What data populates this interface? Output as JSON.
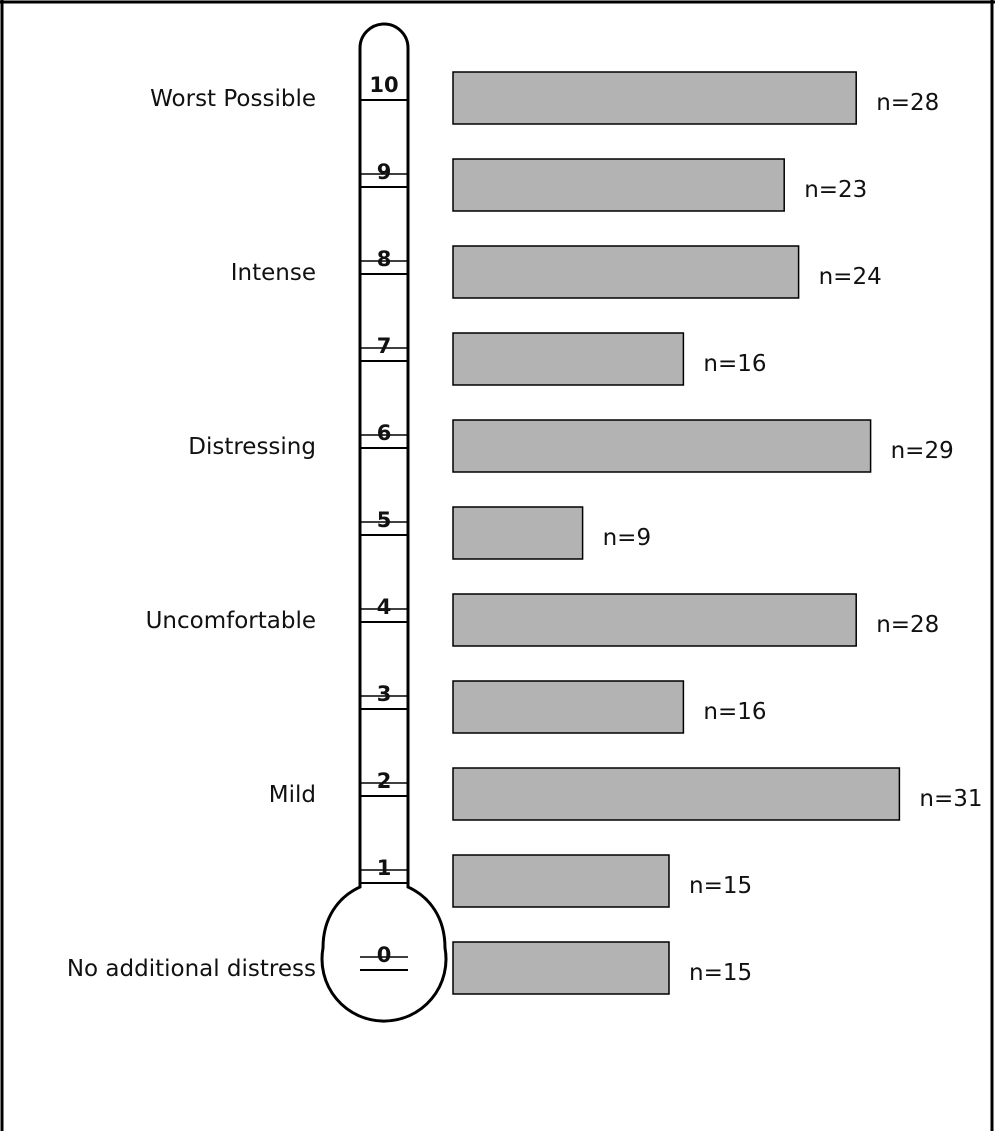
{
  "chart_data": {
    "type": "bar",
    "orientation": "horizontal",
    "categories": [
      "10",
      "9",
      "8",
      "7",
      "6",
      "5",
      "4",
      "3",
      "2",
      "1",
      "0"
    ],
    "values": [
      28,
      23,
      24,
      16,
      29,
      9,
      28,
      16,
      31,
      15,
      15
    ],
    "data_labels": [
      "n=28",
      "n=23",
      "n=24",
      "n=16",
      "n=29",
      "n=9",
      "n=28",
      "n=16",
      "n=31",
      "n=15",
      "n=15"
    ],
    "anchor_labels": [
      {
        "level": "10",
        "text": "Worst Possible"
      },
      {
        "level": "8",
        "text": "Intense"
      },
      {
        "level": "6",
        "text": "Distressing"
      },
      {
        "level": "4",
        "text": "Uncomfortable"
      },
      {
        "level": "2",
        "text": "Mild"
      },
      {
        "level": "0",
        "text": "No additional distress"
      }
    ],
    "grid": false,
    "bar_color": "#b3b3b3"
  }
}
